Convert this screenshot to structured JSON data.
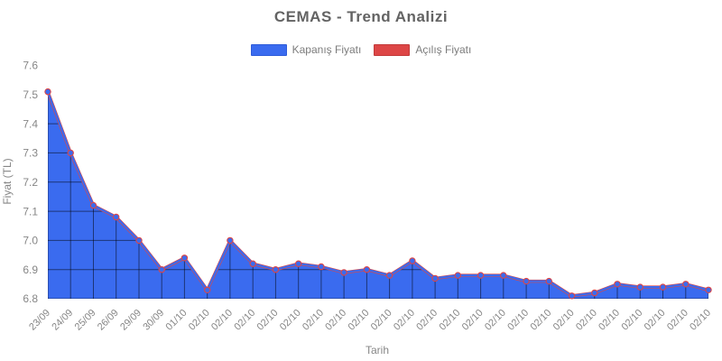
{
  "chart_data": {
    "type": "line",
    "title": "CEMAS - Trend Analizi",
    "xlabel": "Tarih",
    "ylabel": "Fiyat (TL)",
    "ylim": [
      6.8,
      7.6
    ],
    "y_ticks": [
      7.6,
      7.5,
      7.4,
      7.3,
      7.2,
      7.1,
      7.0,
      6.9,
      6.8
    ],
    "grid": "dark gridlines visible only over filled area",
    "legend_position": "top",
    "categories": [
      "23/09",
      "24/09",
      "25/09",
      "26/09",
      "29/09",
      "30/09",
      "01/10",
      "02/10",
      "02/10",
      "02/10",
      "02/10",
      "02/10",
      "02/10",
      "02/10",
      "02/10",
      "02/10",
      "02/10",
      "02/10",
      "02/10",
      "02/10",
      "02/10",
      "02/10",
      "02/10",
      "02/10",
      "02/10",
      "02/10",
      "02/10",
      "02/10",
      "02/10",
      "02/10"
    ],
    "series": [
      {
        "name": "Kapanış Fiyatı",
        "color": "#3A6BEF",
        "border_color": "#2F5CD9",
        "fill": true,
        "values": [
          7.51,
          7.3,
          7.12,
          7.08,
          7.0,
          6.9,
          6.94,
          6.83,
          7.0,
          6.92,
          6.9,
          6.92,
          6.91,
          6.89,
          6.9,
          6.88,
          6.93,
          6.87,
          6.88,
          6.88,
          6.88,
          6.86,
          6.86,
          6.81,
          6.82,
          6.85,
          6.84,
          6.84,
          6.85,
          6.83
        ]
      },
      {
        "name": "Açılış Fiyatı",
        "color": "#DD4646",
        "border_color": "#C23A3A",
        "fill": false,
        "visible_in_plot": false,
        "note": "series almost entirely hidden behind Kapanış Fiyatı; only thin red fringes around line and point markers are visible"
      }
    ]
  }
}
